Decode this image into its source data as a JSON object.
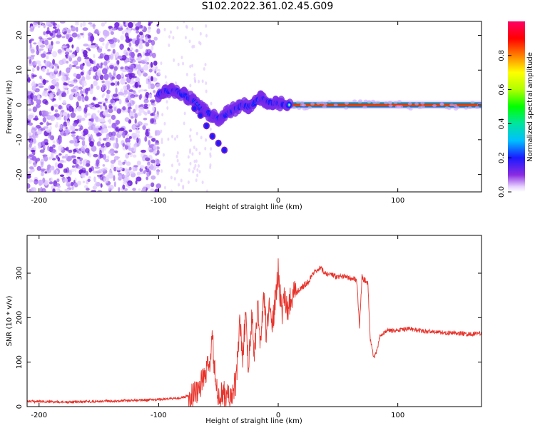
{
  "figure": {
    "title": "S102.2022.361.02.45.G09"
  },
  "chart_data": [
    {
      "type": "heatmap",
      "xlabel": "Height of straight line (km)",
      "ylabel": "Frequency (Hz)",
      "xlim": [
        -210,
        170
      ],
      "ylim": [
        -25,
        24
      ],
      "x_ticks": [
        -200,
        -100,
        0,
        100
      ],
      "y_ticks": [
        -20,
        -10,
        0,
        10,
        20
      ],
      "colorbar": {
        "label": "Normalized spectral amplitude",
        "range": [
          0.0,
          1.0
        ],
        "ticks": [
          0.0,
          0.2,
          0.4,
          0.6,
          0.8
        ],
        "tick_labels": [
          "0.0",
          "0.2",
          "0.4",
          "0.6",
          "0.8"
        ]
      },
      "trace": {
        "x": [
          -100,
          -95,
          -90,
          -85,
          -80,
          -75,
          -70,
          -65,
          -60,
          -55,
          -50,
          -45,
          -40,
          -35,
          -30,
          -25,
          -20,
          -15,
          -10,
          -5,
          0,
          5,
          10
        ],
        "y": [
          3,
          4,
          4,
          4,
          3,
          2,
          1,
          -1,
          -2,
          -3,
          -4,
          -3,
          -2,
          -1,
          0,
          -0.5,
          0.5,
          2,
          1,
          0.5,
          0.5,
          0,
          0
        ]
      },
      "branch": {
        "x": [
          -70,
          -65,
          -60,
          -55,
          -50,
          -45
        ],
        "y": [
          -1,
          -3,
          -6,
          -9,
          -11,
          -13
        ]
      },
      "line": {
        "x_start": 0,
        "x_end": 170,
        "y": 0
      }
    },
    {
      "type": "line",
      "xlabel": "Height of straight line (km)",
      "ylabel": "SNR (10 * v/v)",
      "xlim": [
        -210,
        170
      ],
      "ylim": [
        0,
        385
      ],
      "x_ticks": [
        -200,
        -100,
        0,
        100
      ],
      "y_ticks": [
        0,
        100,
        200,
        300
      ],
      "series": [
        {
          "color": "#e8322a",
          "x": [
            -210,
            -180,
            -150,
            -120,
            -100,
            -90,
            -80,
            -75,
            -70,
            -67,
            -63,
            -60,
            -57,
            -55,
            -52,
            -50,
            -47,
            -45,
            -42,
            -40,
            -38,
            -35,
            -32,
            -30,
            -27,
            -25,
            -22,
            -20,
            -17,
            -15,
            -12,
            -10,
            -7,
            -5,
            -2,
            0,
            3,
            5,
            8,
            10,
            13,
            15,
            20,
            25,
            30,
            35,
            40,
            45,
            50,
            55,
            60,
            65,
            66,
            68,
            70,
            72,
            74,
            75,
            77,
            80,
            83,
            85,
            88,
            90,
            100,
            110,
            120,
            130,
            140,
            150,
            160,
            170
          ],
          "y": [
            12,
            10,
            12,
            14,
            16,
            18,
            20,
            25,
            30,
            40,
            60,
            80,
            100,
            150,
            40,
            20,
            25,
            30,
            20,
            25,
            30,
            60,
            200,
            100,
            220,
            80,
            210,
            120,
            230,
            140,
            260,
            160,
            240,
            180,
            250,
            310,
            200,
            250,
            220,
            240,
            260,
            255,
            270,
            280,
            300,
            310,
            300,
            295,
            290,
            295,
            290,
            285,
            270,
            180,
            290,
            285,
            280,
            275,
            150,
            110,
            130,
            160,
            165,
            170,
            172,
            175,
            170,
            168,
            166,
            165,
            163,
            165
          ]
        }
      ]
    }
  ]
}
